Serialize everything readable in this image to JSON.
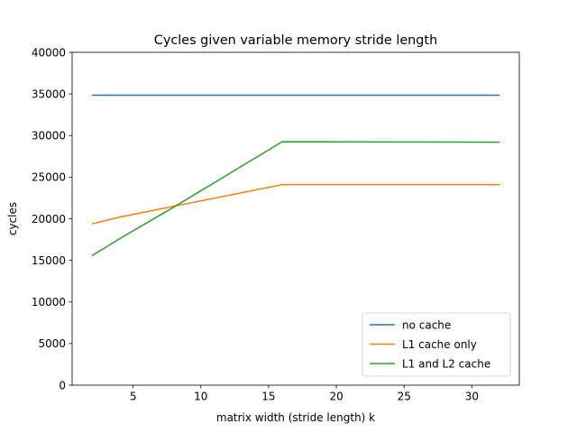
{
  "chart_data": {
    "type": "line",
    "title": "Cycles given variable memory stride length",
    "xlabel": "matrix width (stride length) k",
    "ylabel": "cycles",
    "xlim": [
      0.5,
      33.5
    ],
    "ylim": [
      0,
      40000
    ],
    "xticks": [
      5,
      10,
      15,
      20,
      25,
      30
    ],
    "yticks": [
      0,
      5000,
      10000,
      15000,
      20000,
      25000,
      30000,
      35000,
      40000
    ],
    "grid": false,
    "legend_position": "lower-right",
    "series": [
      {
        "name": "no cache",
        "color": "#1f77b4",
        "x": [
          2,
          4,
          8,
          16,
          32
        ],
        "y": [
          34850,
          34850,
          34850,
          34850,
          34850
        ]
      },
      {
        "name": "L1 cache only",
        "color": "#ff7f0e",
        "x": [
          2,
          4,
          8,
          16,
          32
        ],
        "y": [
          19400,
          20200,
          21500,
          24100,
          24100
        ]
      },
      {
        "name": "L1 and L2 cache",
        "color": "#2ca02c",
        "x": [
          2,
          4,
          8,
          16,
          32
        ],
        "y": [
          15600,
          17600,
          21400,
          29250,
          29200
        ]
      }
    ]
  }
}
